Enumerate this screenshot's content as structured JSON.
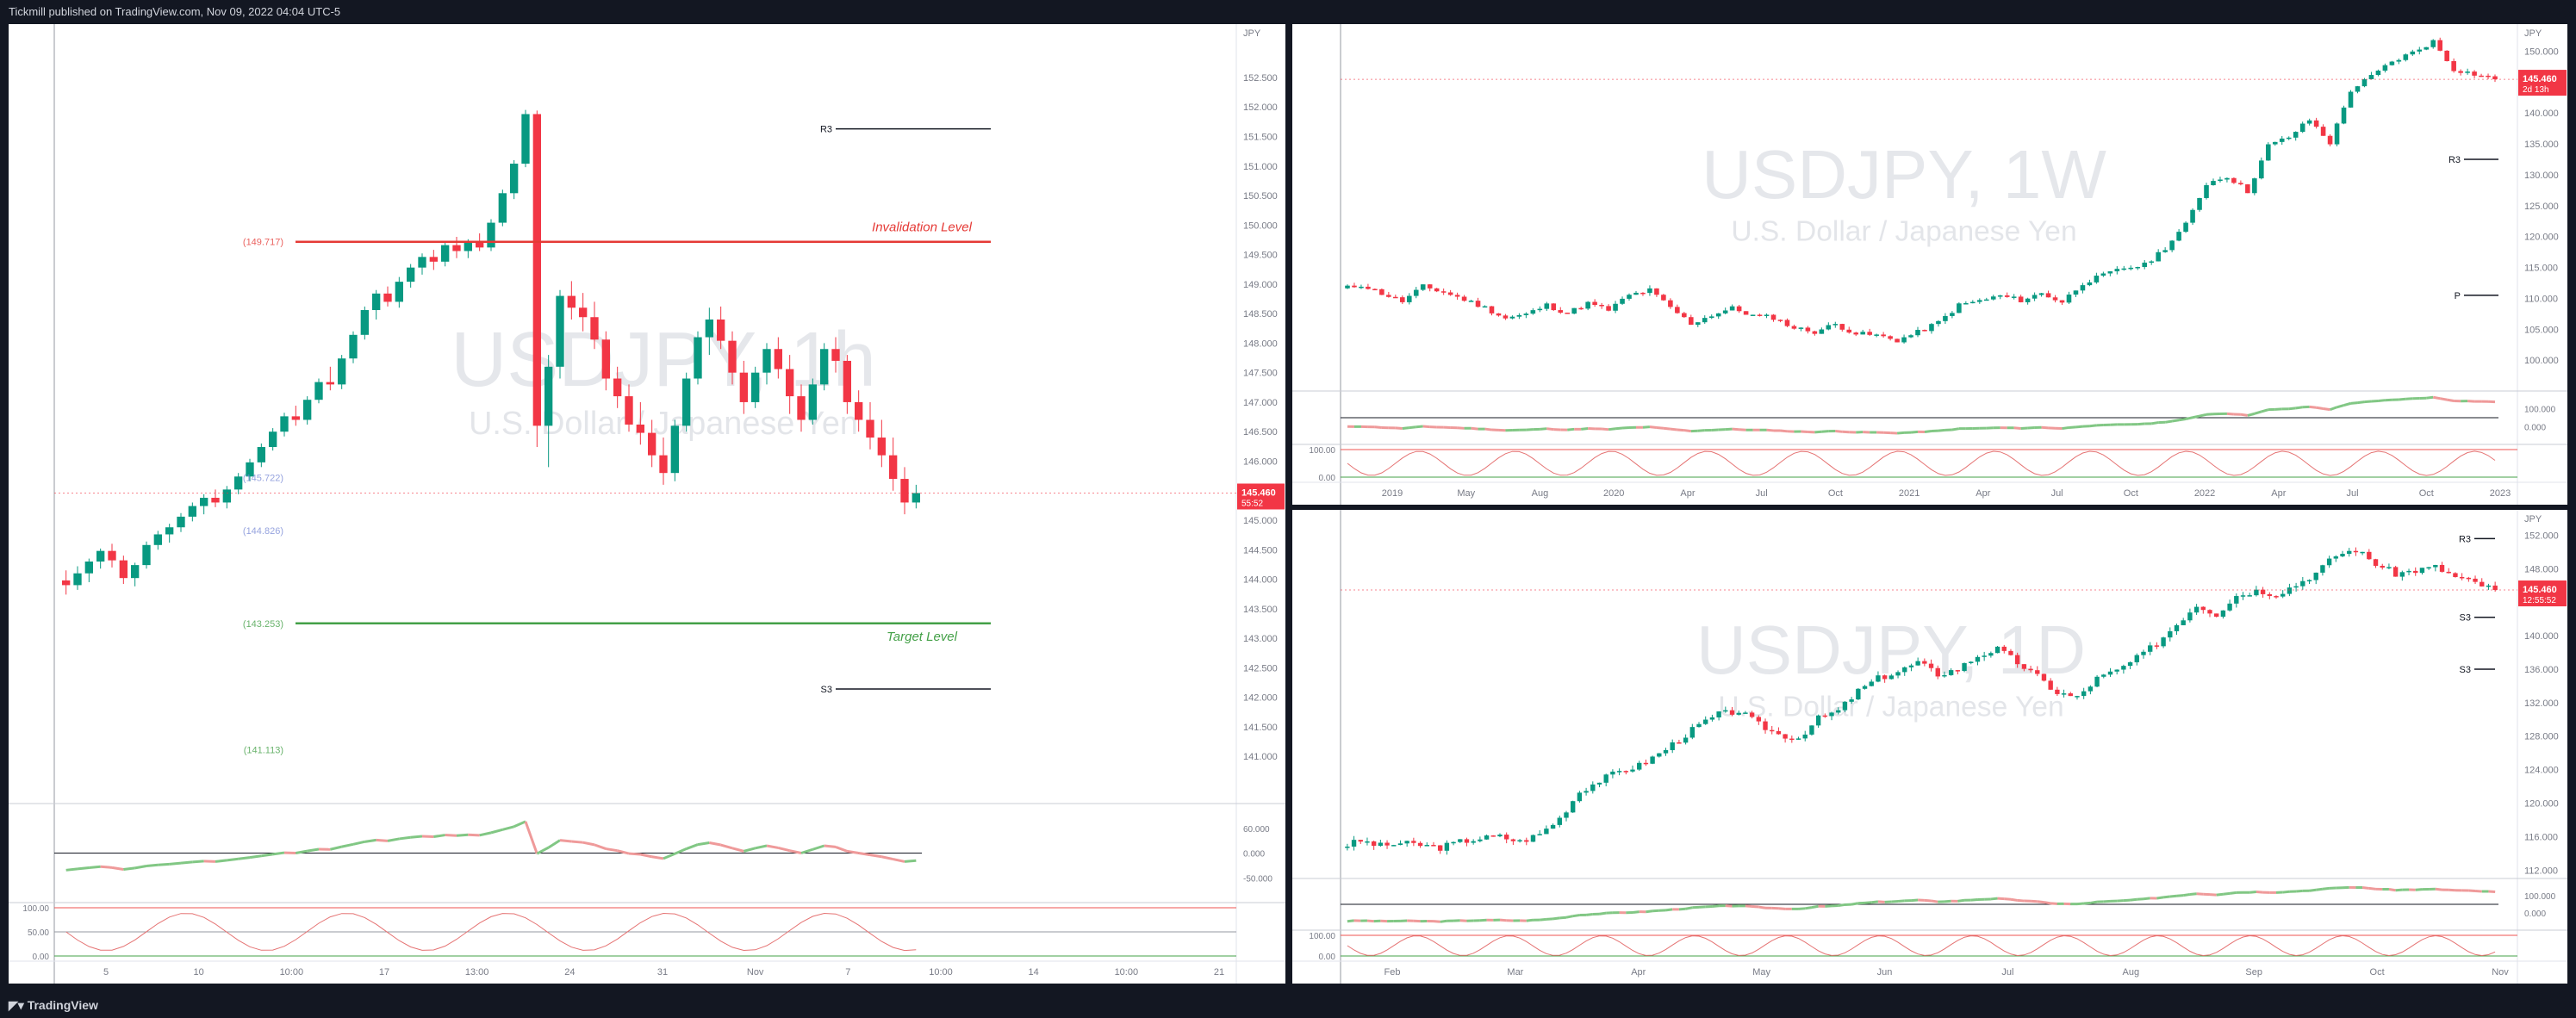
{
  "header": {
    "published_by": "Tickmill published on TradingView.com, Nov 09, 2022 04:04 UTC-5"
  },
  "footer": {
    "logo_text": "TradingView"
  },
  "chart_data": [
    {
      "type": "candlestick",
      "symbol": "USDJPY",
      "timeframe": "1h",
      "watermark_symbol": "USDJPY, 1h",
      "watermark_name": "U.S. Dollar / Japanese Yen",
      "currency": "JPY",
      "ylim": [
        140.2,
        153.2
      ],
      "yticks": [
        "152.500",
        "152.000",
        "151.500",
        "151.000",
        "150.500",
        "150.000",
        "149.500",
        "149.000",
        "148.500",
        "148.000",
        "147.500",
        "147.000",
        "146.500",
        "146.000",
        "145.500",
        "145.000",
        "144.500",
        "144.000",
        "143.500",
        "143.000",
        "142.500",
        "142.000",
        "141.500",
        "141.000"
      ],
      "xticks": [
        "5",
        "10",
        "10:00",
        "17",
        "13:00",
        "24",
        "31",
        "Nov",
        "7",
        "10:00",
        "14",
        "10:00",
        "21"
      ],
      "last_price": "145.460",
      "countdown": "55:52",
      "candles": [
        [
          143.98,
          144.15,
          143.74,
          143.9
        ],
        [
          143.9,
          144.22,
          143.82,
          144.1
        ],
        [
          144.1,
          144.35,
          143.95,
          144.3
        ],
        [
          144.3,
          144.52,
          144.18,
          144.48
        ],
        [
          144.48,
          144.6,
          144.2,
          144.32
        ],
        [
          144.32,
          144.4,
          143.92,
          144.02
        ],
        [
          144.02,
          144.28,
          143.88,
          144.24
        ],
        [
          144.24,
          144.64,
          144.18,
          144.58
        ],
        [
          144.58,
          144.82,
          144.5,
          144.76
        ],
        [
          144.76,
          144.94,
          144.62,
          144.88
        ],
        [
          144.88,
          145.12,
          144.8,
          145.06
        ],
        [
          145.06,
          145.3,
          144.98,
          145.24
        ],
        [
          145.24,
          145.44,
          145.1,
          145.38
        ],
        [
          145.38,
          145.52,
          145.22,
          145.3
        ],
        [
          145.3,
          145.58,
          145.2,
          145.52
        ],
        [
          145.52,
          145.8,
          145.44,
          145.74
        ],
        [
          145.74,
          146.04,
          145.66,
          145.98
        ],
        [
          145.98,
          146.3,
          145.9,
          146.24
        ],
        [
          146.24,
          146.56,
          146.18,
          146.5
        ],
        [
          146.5,
          146.82,
          146.42,
          146.76
        ],
        [
          146.76,
          146.94,
          146.6,
          146.7
        ],
        [
          146.7,
          147.1,
          146.62,
          147.04
        ],
        [
          147.04,
          147.4,
          146.98,
          147.34
        ],
        [
          147.34,
          147.6,
          147.2,
          147.3
        ],
        [
          147.3,
          147.8,
          147.22,
          147.74
        ],
        [
          147.74,
          148.2,
          147.66,
          148.14
        ],
        [
          148.14,
          148.62,
          148.06,
          148.56
        ],
        [
          148.56,
          148.9,
          148.4,
          148.84
        ],
        [
          148.84,
          148.96,
          148.62,
          148.7
        ],
        [
          148.7,
          149.12,
          148.6,
          149.04
        ],
        [
          149.04,
          149.34,
          148.94,
          149.28
        ],
        [
          149.28,
          149.52,
          149.16,
          149.46
        ],
        [
          149.46,
          149.58,
          149.24,
          149.38
        ],
        [
          149.38,
          149.72,
          149.3,
          149.66
        ],
        [
          149.66,
          149.8,
          149.44,
          149.56
        ],
        [
          149.56,
          149.76,
          149.44,
          149.7
        ],
        [
          149.7,
          149.86,
          149.56,
          149.62
        ],
        [
          149.62,
          150.1,
          149.56,
          150.04
        ],
        [
          150.04,
          150.6,
          149.98,
          150.54
        ],
        [
          150.54,
          151.1,
          150.44,
          151.04
        ],
        [
          151.04,
          151.95,
          150.98,
          151.88
        ],
        [
          151.88,
          151.94,
          146.24,
          146.6
        ],
        [
          146.6,
          147.8,
          145.9,
          147.6
        ],
        [
          147.6,
          148.9,
          147.4,
          148.8
        ],
        [
          148.8,
          149.05,
          148.4,
          148.6
        ],
        [
          148.6,
          148.85,
          148.2,
          148.44
        ],
        [
          148.44,
          148.7,
          147.9,
          148.06
        ],
        [
          148.06,
          148.2,
          147.2,
          147.4
        ],
        [
          147.4,
          147.6,
          146.9,
          147.1
        ],
        [
          147.1,
          147.3,
          146.5,
          146.62
        ],
        [
          146.62,
          147.0,
          146.28,
          146.48
        ],
        [
          146.48,
          146.7,
          145.9,
          146.1
        ],
        [
          146.1,
          146.4,
          145.6,
          145.8
        ],
        [
          145.8,
          146.7,
          145.66,
          146.6
        ],
        [
          146.6,
          147.5,
          146.5,
          147.4
        ],
        [
          147.4,
          148.2,
          147.3,
          148.1
        ],
        [
          148.1,
          148.6,
          147.8,
          148.4
        ],
        [
          148.4,
          148.62,
          147.9,
          148.04
        ],
        [
          148.04,
          148.2,
          147.3,
          147.5
        ],
        [
          147.5,
          147.7,
          146.8,
          147.0
        ],
        [
          147.0,
          147.6,
          146.9,
          147.5
        ],
        [
          147.5,
          148.0,
          147.3,
          147.9
        ],
        [
          147.9,
          148.1,
          147.4,
          147.56
        ],
        [
          147.56,
          147.8,
          146.8,
          147.1
        ],
        [
          147.1,
          147.3,
          146.5,
          146.7
        ],
        [
          146.7,
          147.4,
          146.62,
          147.3
        ],
        [
          147.3,
          148.0,
          147.2,
          147.9
        ],
        [
          147.9,
          148.1,
          147.5,
          147.7
        ],
        [
          147.7,
          147.8,
          146.8,
          147.0
        ],
        [
          147.0,
          147.2,
          146.5,
          146.7
        ],
        [
          146.7,
          147.0,
          146.2,
          146.4
        ],
        [
          146.4,
          146.7,
          145.9,
          146.1
        ],
        [
          146.1,
          146.4,
          145.5,
          145.7
        ],
        [
          145.7,
          145.9,
          145.1,
          145.3
        ],
        [
          145.3,
          145.6,
          145.2,
          145.46
        ]
      ],
      "levels": [
        {
          "label": "R3",
          "value": 151.63
        },
        {
          "label": "Invalidation Level",
          "value": 149.717
        },
        {
          "label": "(149.717)",
          "value": 149.717
        },
        {
          "label": "(145.722)",
          "value": 145.722
        },
        {
          "label": "(144.826)",
          "value": 144.826
        },
        {
          "label": "(143.253)",
          "value": 143.253
        },
        {
          "label": "Target Level",
          "value": 143.253
        },
        {
          "label": "S3",
          "value": 142.14
        },
        {
          "label": "(141.113)",
          "value": 141.113
        }
      ],
      "indicator_ticks": [
        "60.000",
        "0.000",
        "-50.000"
      ],
      "oscillator_ticks": [
        "100.00",
        "50.00",
        "0.00"
      ]
    },
    {
      "type": "candlestick",
      "symbol": "USDJPY",
      "timeframe": "1W",
      "watermark_symbol": "USDJPY, 1W",
      "watermark_name": "U.S. Dollar / Japanese Yen",
      "currency": "JPY",
      "ylim": [
        95,
        153
      ],
      "yticks": [
        "150.000",
        "145.000",
        "140.000",
        "135.000",
        "130.000",
        "125.000",
        "120.000",
        "115.000",
        "110.000",
        "105.000",
        "100.000"
      ],
      "xticks": [
        "2019",
        "May",
        "Aug",
        "2020",
        "Apr",
        "Jul",
        "Oct",
        "2021",
        "Apr",
        "Jul",
        "Oct",
        "2022",
        "Apr",
        "Jul",
        "Oct",
        "2023"
      ],
      "last_price": "145.460",
      "countdown": "2d 13h",
      "close_path": [
        111.5,
        112.2,
        110.8,
        109.5,
        111.9,
        111.0,
        109.8,
        108.5,
        106.8,
        107.4,
        108.9,
        107.6,
        109.2,
        108.1,
        110.5,
        111.3,
        108.5,
        105.9,
        107.3,
        108.4,
        107.2,
        106.9,
        105.2,
        104.6,
        105.8,
        104.3,
        104.0,
        103.2,
        104.5,
        106.1,
        108.9,
        109.6,
        110.4,
        109.7,
        110.8,
        109.4,
        112.5,
        113.7,
        114.9,
        115.4,
        118.2,
        121.9,
        128.6,
        129.8,
        127.3,
        134.7,
        136.1,
        138.9,
        135.2,
        143.7,
        145.9,
        148.3,
        149.8,
        151.6,
        147.1,
        146.3,
        145.46
      ],
      "levels": [
        {
          "label": "R3",
          "value": 132.5
        },
        {
          "label": "P",
          "value": 110.5
        }
      ],
      "indicator_ticks": [
        "100.000",
        "0.000"
      ],
      "oscillator_ticks": [
        "100.00",
        "0.00"
      ]
    },
    {
      "type": "candlestick",
      "symbol": "USDJPY",
      "timeframe": "1D",
      "watermark_symbol": "USDJPY, 1D",
      "watermark_name": "U.S. Dollar / Japanese Yen",
      "currency": "JPY",
      "ylim": [
        111,
        154
      ],
      "yticks": [
        "152.000",
        "148.000",
        "144.000",
        "140.000",
        "136.000",
        "132.000",
        "128.000",
        "124.000",
        "120.000",
        "116.000",
        "112.000"
      ],
      "xticks": [
        "Feb",
        "Mar",
        "Apr",
        "May",
        "Jun",
        "Jul",
        "Aug",
        "Sep",
        "Oct",
        "Nov"
      ],
      "last_price": "145.460",
      "countdown": "12:55:52",
      "close_path": [
        114.8,
        115.5,
        114.9,
        115.2,
        115.0,
        114.7,
        115.4,
        115.8,
        116.0,
        115.4,
        116.3,
        118.2,
        121.4,
        122.7,
        123.8,
        124.5,
        125.9,
        127.6,
        129.3,
        130.6,
        131.0,
        129.4,
        128.2,
        127.8,
        130.1,
        131.0,
        133.4,
        134.9,
        135.7,
        136.8,
        135.4,
        136.0,
        137.6,
        138.4,
        136.8,
        135.1,
        133.2,
        132.6,
        134.9,
        135.8,
        137.3,
        139.1,
        141.4,
        143.7,
        142.6,
        144.8,
        145.4,
        145.0,
        146.1,
        147.5,
        149.6,
        150.3,
        148.6,
        147.4,
        147.8,
        148.2,
        147.0,
        146.3,
        145.46
      ],
      "levels": [
        {
          "label": "R3",
          "value": 151.6
        },
        {
          "label": "S3",
          "value": 142.2
        },
        {
          "label": "S3",
          "value": 136.0
        }
      ],
      "indicator_ticks": [
        "100.000",
        "0.000"
      ],
      "oscillator_ticks": [
        "100.00",
        "0.00"
      ]
    }
  ],
  "colors": {
    "up": "#089981",
    "down": "#f23645",
    "bg": "#131722",
    "panel": "#ffffff",
    "grid": "#f0f3fa",
    "axis_text": "#787b86",
    "red_level": "#e53935",
    "green_level": "#43a047",
    "orange_level": "#f5a623",
    "blue": "#2962ff"
  }
}
